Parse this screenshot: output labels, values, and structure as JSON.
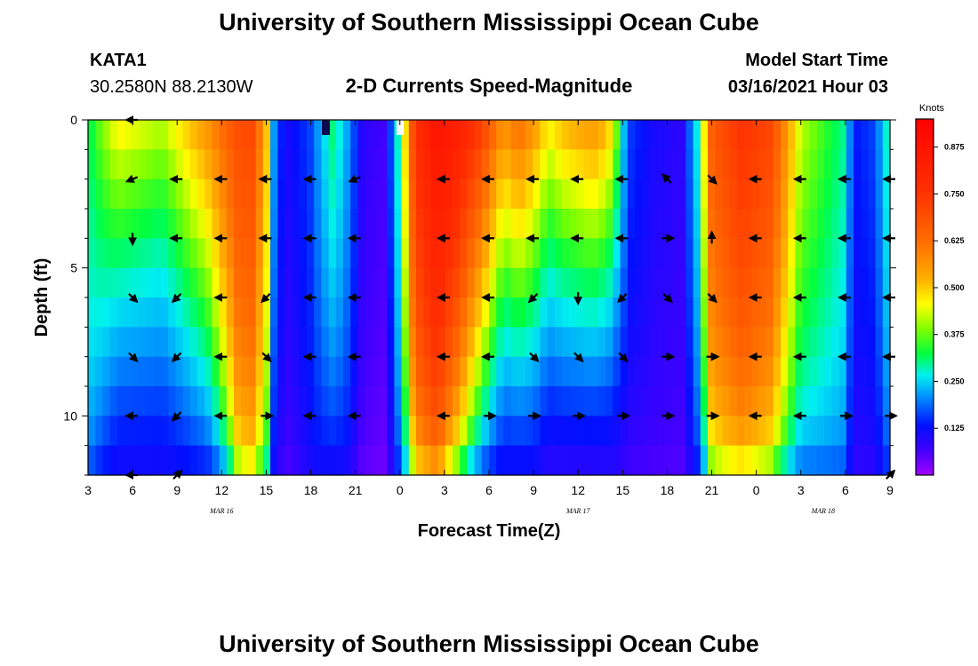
{
  "titles": {
    "top": "University of Southern Mississippi Ocean Cube",
    "bottom": "University of Southern Mississippi Ocean Cube"
  },
  "header": {
    "station": "KATA1",
    "coords": "30.2580N 88.2130W",
    "subtitle": "2-D Currents Speed-Magnitude",
    "model_label": "Model Start Time",
    "model_time": "03/16/2021 Hour 03"
  },
  "chart_data": {
    "type": "heatmap",
    "title": "2-D Currents Speed-Magnitude",
    "xlabel": "Forecast Time(Z)",
    "ylabel": "Depth (ft)",
    "x_tick_labels": [
      "3",
      "6",
      "9",
      "12",
      "15",
      "18",
      "21",
      "0",
      "3",
      "6",
      "9",
      "12",
      "15",
      "18",
      "21",
      "0",
      "3",
      "6",
      "9"
    ],
    "x_range_hours": [
      0,
      54
    ],
    "date_labels": [
      {
        "text": "MAR 16",
        "hour": 9
      },
      {
        "text": "MAR 17",
        "hour": 33
      },
      {
        "text": "MAR 18",
        "hour": 49.5
      }
    ],
    "y_tick_labels": [
      "0",
      "5",
      "10"
    ],
    "y_range_ft": [
      0,
      12
    ],
    "colorbar": {
      "unit": "Knots",
      "range": [
        0.0,
        0.95
      ],
      "ticks": [
        "0.125",
        "0.250",
        "0.375",
        "0.500",
        "0.625",
        "0.750",
        "0.875"
      ],
      "tick_values": [
        0.125,
        0.25,
        0.375,
        0.5,
        0.625,
        0.75,
        0.875
      ]
    },
    "speed_keyframes_knots": [
      {
        "hour": 0,
        "surface": 0.3,
        "bottom": 0.12,
        "rate": 0.1
      },
      {
        "hour": 2,
        "surface": 0.45,
        "bottom": 0.1,
        "rate": 0.3
      },
      {
        "hour": 5,
        "surface": 0.4,
        "bottom": 0.1,
        "rate": 0.3
      },
      {
        "hour": 8,
        "surface": 0.55,
        "bottom": 0.11,
        "rate": 0.22
      },
      {
        "hour": 10,
        "surface": 0.68,
        "bottom": 0.14,
        "rate": 0.06
      },
      {
        "hour": 11,
        "surface": 0.7,
        "bottom": 0.16,
        "rate": 0.05
      },
      {
        "hour": 12,
        "surface": 0.5,
        "bottom": 0.12,
        "rate": 0.06
      },
      {
        "hour": 12.6,
        "surface": 0.15,
        "bottom": 0.06,
        "rate": 0.1
      },
      {
        "hour": 13.5,
        "surface": 0.1,
        "bottom": 0.04,
        "rate": 0.1
      },
      {
        "hour": 15,
        "surface": 0.15,
        "bottom": 0.08,
        "rate": 0.1
      },
      {
        "hour": 16.5,
        "surface": 0.3,
        "bottom": 0.08,
        "rate": 0.16
      },
      {
        "hour": 17.5,
        "surface": 0.2,
        "bottom": 0.06,
        "rate": 0.1
      },
      {
        "hour": 18.5,
        "surface": 0.08,
        "bottom": 0.03,
        "rate": 0.1
      },
      {
        "hour": 20,
        "surface": 0.06,
        "bottom": 0.02,
        "rate": 0.1
      },
      {
        "hour": 21,
        "surface": 0.3,
        "bottom": 0.1,
        "rate": 0.1
      },
      {
        "hour": 22,
        "surface": 0.75,
        "bottom": 0.15,
        "rate": 0.05
      },
      {
        "hour": 23.5,
        "surface": 0.87,
        "bottom": 0.22,
        "rate": 0.05
      },
      {
        "hour": 25,
        "surface": 0.82,
        "bottom": 0.18,
        "rate": 0.1
      },
      {
        "hour": 26.5,
        "surface": 0.72,
        "bottom": 0.12,
        "rate": 0.18
      },
      {
        "hour": 28,
        "surface": 0.55,
        "bottom": 0.1,
        "rate": 0.28
      },
      {
        "hour": 29,
        "surface": 0.62,
        "bottom": 0.1,
        "rate": 0.28
      },
      {
        "hour": 30,
        "surface": 0.55,
        "bottom": 0.1,
        "rate": 0.28
      },
      {
        "hour": 31,
        "surface": 0.45,
        "bottom": 0.08,
        "rate": 0.3
      },
      {
        "hour": 32,
        "surface": 0.5,
        "bottom": 0.08,
        "rate": 0.3
      },
      {
        "hour": 34,
        "surface": 0.55,
        "bottom": 0.08,
        "rate": 0.3
      },
      {
        "hour": 35,
        "surface": 0.5,
        "bottom": 0.08,
        "rate": 0.3
      },
      {
        "hour": 35.7,
        "surface": 0.35,
        "bottom": 0.08,
        "rate": 0.3
      },
      {
        "hour": 36.3,
        "surface": 0.15,
        "bottom": 0.05,
        "rate": 0.15
      },
      {
        "hour": 38,
        "surface": 0.1,
        "bottom": 0.04,
        "rate": 0.1
      },
      {
        "hour": 40,
        "surface": 0.08,
        "bottom": 0.04,
        "rate": 0.1
      },
      {
        "hour": 41,
        "surface": 0.25,
        "bottom": 0.08,
        "rate": 0.1
      },
      {
        "hour": 42,
        "surface": 0.65,
        "bottom": 0.1,
        "rate": 0.05
      },
      {
        "hour": 44,
        "surface": 0.75,
        "bottom": 0.12,
        "rate": 0.05
      },
      {
        "hour": 46,
        "surface": 0.7,
        "bottom": 0.12,
        "rate": 0.06
      },
      {
        "hour": 48,
        "surface": 0.4,
        "bottom": 0.1,
        "rate": 0.1
      },
      {
        "hour": 51,
        "surface": 0.28,
        "bottom": 0.1,
        "rate": 0.08
      },
      {
        "hour": 51.5,
        "surface": 0.12,
        "bottom": 0.06,
        "rate": 0.1
      },
      {
        "hour": 53,
        "surface": 0.15,
        "bottom": 0.06,
        "rate": 0.1
      },
      {
        "hour": 54,
        "surface": 0.3,
        "bottom": 0.1,
        "rate": 0.1
      }
    ],
    "current_vectors": [
      {
        "hour": 3,
        "depth_ft": 0,
        "dir": "W"
      },
      {
        "hour": 3,
        "depth_ft": 2,
        "dir": "WSW"
      },
      {
        "hour": 3,
        "depth_ft": 4,
        "dir": "S"
      },
      {
        "hour": 3,
        "depth_ft": 6,
        "dir": "SE"
      },
      {
        "hour": 3,
        "depth_ft": 8,
        "dir": "SE"
      },
      {
        "hour": 3,
        "depth_ft": 10,
        "dir": "W"
      },
      {
        "hour": 3,
        "depth_ft": 12,
        "dir": "W"
      },
      {
        "hour": 6,
        "depth_ft": 2,
        "dir": "W"
      },
      {
        "hour": 6,
        "depth_ft": 4,
        "dir": "W"
      },
      {
        "hour": 6,
        "depth_ft": 6,
        "dir": "SW"
      },
      {
        "hour": 6,
        "depth_ft": 8,
        "dir": "SW"
      },
      {
        "hour": 6,
        "depth_ft": 10,
        "dir": "SW"
      },
      {
        "hour": 6,
        "depth_ft": 12,
        "dir": "NE"
      },
      {
        "hour": 9,
        "depth_ft": 2,
        "dir": "W"
      },
      {
        "hour": 9,
        "depth_ft": 4,
        "dir": "W"
      },
      {
        "hour": 9,
        "depth_ft": 6,
        "dir": "W"
      },
      {
        "hour": 9,
        "depth_ft": 8,
        "dir": "W"
      },
      {
        "hour": 9,
        "depth_ft": 10,
        "dir": "W"
      },
      {
        "hour": 12,
        "depth_ft": 2,
        "dir": "W"
      },
      {
        "hour": 12,
        "depth_ft": 4,
        "dir": "W"
      },
      {
        "hour": 12,
        "depth_ft": 6,
        "dir": "SW"
      },
      {
        "hour": 12,
        "depth_ft": 8,
        "dir": "SE"
      },
      {
        "hour": 12,
        "depth_ft": 10,
        "dir": "E"
      },
      {
        "hour": 15,
        "depth_ft": 2,
        "dir": "W"
      },
      {
        "hour": 15,
        "depth_ft": 4,
        "dir": "W"
      },
      {
        "hour": 15,
        "depth_ft": 6,
        "dir": "W"
      },
      {
        "hour": 15,
        "depth_ft": 8,
        "dir": "W"
      },
      {
        "hour": 15,
        "depth_ft": 10,
        "dir": "W"
      },
      {
        "hour": 18,
        "depth_ft": 2,
        "dir": "WSW"
      },
      {
        "hour": 18,
        "depth_ft": 4,
        "dir": "W"
      },
      {
        "hour": 18,
        "depth_ft": 6,
        "dir": "W"
      },
      {
        "hour": 18,
        "depth_ft": 8,
        "dir": "W"
      },
      {
        "hour": 18,
        "depth_ft": 10,
        "dir": "W"
      },
      {
        "hour": 24,
        "depth_ft": 2,
        "dir": "W"
      },
      {
        "hour": 24,
        "depth_ft": 4,
        "dir": "W"
      },
      {
        "hour": 24,
        "depth_ft": 6,
        "dir": "W"
      },
      {
        "hour": 24,
        "depth_ft": 8,
        "dir": "W"
      },
      {
        "hour": 24,
        "depth_ft": 10,
        "dir": "W"
      },
      {
        "hour": 27,
        "depth_ft": 2,
        "dir": "W"
      },
      {
        "hour": 27,
        "depth_ft": 4,
        "dir": "W"
      },
      {
        "hour": 27,
        "depth_ft": 6,
        "dir": "W"
      },
      {
        "hour": 27,
        "depth_ft": 8,
        "dir": "W"
      },
      {
        "hour": 27,
        "depth_ft": 10,
        "dir": "E"
      },
      {
        "hour": 30,
        "depth_ft": 2,
        "dir": "W"
      },
      {
        "hour": 30,
        "depth_ft": 4,
        "dir": "W"
      },
      {
        "hour": 30,
        "depth_ft": 6,
        "dir": "SW"
      },
      {
        "hour": 30,
        "depth_ft": 8,
        "dir": "SE"
      },
      {
        "hour": 30,
        "depth_ft": 10,
        "dir": "E"
      },
      {
        "hour": 33,
        "depth_ft": 2,
        "dir": "W"
      },
      {
        "hour": 33,
        "depth_ft": 4,
        "dir": "W"
      },
      {
        "hour": 33,
        "depth_ft": 6,
        "dir": "S"
      },
      {
        "hour": 33,
        "depth_ft": 8,
        "dir": "SE"
      },
      {
        "hour": 33,
        "depth_ft": 10,
        "dir": "E"
      },
      {
        "hour": 36,
        "depth_ft": 2,
        "dir": "W"
      },
      {
        "hour": 36,
        "depth_ft": 4,
        "dir": "W"
      },
      {
        "hour": 36,
        "depth_ft": 6,
        "dir": "SW"
      },
      {
        "hour": 36,
        "depth_ft": 8,
        "dir": "SE"
      },
      {
        "hour": 36,
        "depth_ft": 10,
        "dir": "E"
      },
      {
        "hour": 39,
        "depth_ft": 2,
        "dir": "NW"
      },
      {
        "hour": 39,
        "depth_ft": 4,
        "dir": "E"
      },
      {
        "hour": 39,
        "depth_ft": 6,
        "dir": "SE"
      },
      {
        "hour": 39,
        "depth_ft": 8,
        "dir": "E"
      },
      {
        "hour": 39,
        "depth_ft": 10,
        "dir": "E"
      },
      {
        "hour": 42,
        "depth_ft": 2,
        "dir": "SE"
      },
      {
        "hour": 42,
        "depth_ft": 4,
        "dir": "N"
      },
      {
        "hour": 42,
        "depth_ft": 6,
        "dir": "SE"
      },
      {
        "hour": 42,
        "depth_ft": 8,
        "dir": "E"
      },
      {
        "hour": 42,
        "depth_ft": 10,
        "dir": "E"
      },
      {
        "hour": 45,
        "depth_ft": 2,
        "dir": "W"
      },
      {
        "hour": 45,
        "depth_ft": 4,
        "dir": "W"
      },
      {
        "hour": 45,
        "depth_ft": 6,
        "dir": "W"
      },
      {
        "hour": 45,
        "depth_ft": 8,
        "dir": "W"
      },
      {
        "hour": 45,
        "depth_ft": 10,
        "dir": "W"
      },
      {
        "hour": 48,
        "depth_ft": 2,
        "dir": "W"
      },
      {
        "hour": 48,
        "depth_ft": 4,
        "dir": "W"
      },
      {
        "hour": 48,
        "depth_ft": 6,
        "dir": "W"
      },
      {
        "hour": 48,
        "depth_ft": 8,
        "dir": "W"
      },
      {
        "hour": 48,
        "depth_ft": 10,
        "dir": "W"
      },
      {
        "hour": 51,
        "depth_ft": 2,
        "dir": "W"
      },
      {
        "hour": 51,
        "depth_ft": 4,
        "dir": "W"
      },
      {
        "hour": 51,
        "depth_ft": 6,
        "dir": "W"
      },
      {
        "hour": 51,
        "depth_ft": 8,
        "dir": "W"
      },
      {
        "hour": 51,
        "depth_ft": 10,
        "dir": "E"
      },
      {
        "hour": 54,
        "depth_ft": 2,
        "dir": "W"
      },
      {
        "hour": 54,
        "depth_ft": 4,
        "dir": "W"
      },
      {
        "hour": 54,
        "depth_ft": 6,
        "dir": "W"
      },
      {
        "hour": 54,
        "depth_ft": 8,
        "dir": "W"
      },
      {
        "hour": 54,
        "depth_ft": 10,
        "dir": "E"
      },
      {
        "hour": 54,
        "depth_ft": 12,
        "dir": "NE"
      }
    ]
  }
}
